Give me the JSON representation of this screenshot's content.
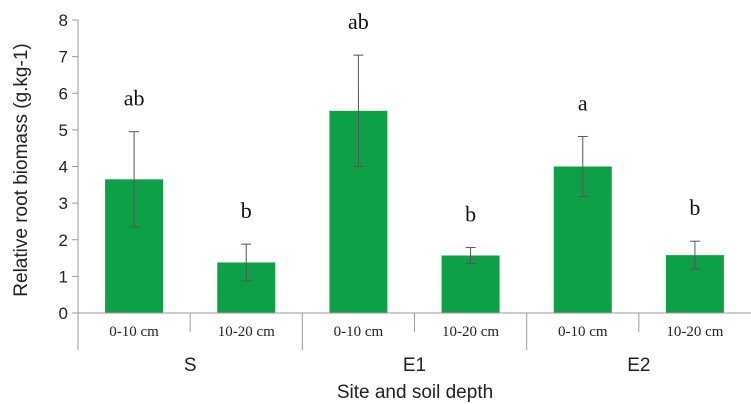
{
  "chart_data": {
    "type": "bar",
    "title": "",
    "xlabel": "Site and soil depth",
    "ylabel": "Relative root biomass (g.kg-1)",
    "ylim": [
      0,
      8
    ],
    "yticks": [
      "0",
      "1",
      "2",
      "3",
      "4",
      "5",
      "6",
      "7",
      "8"
    ],
    "grid": false,
    "groups": [
      "S",
      "E1",
      "E2"
    ],
    "categories": [
      "0-10 cm",
      "10-20 cm",
      "0-10 cm",
      "10-20 cm",
      "0-10 cm",
      "10-20 cm"
    ],
    "values": [
      3.65,
      1.38,
      5.52,
      1.57,
      4.0,
      1.58
    ],
    "error": [
      1.3,
      0.5,
      1.52,
      0.22,
      0.82,
      0.38
    ],
    "significance": [
      "ab",
      "b",
      "ab",
      "b",
      "a",
      "b"
    ],
    "bar_color": "#0ea047"
  }
}
